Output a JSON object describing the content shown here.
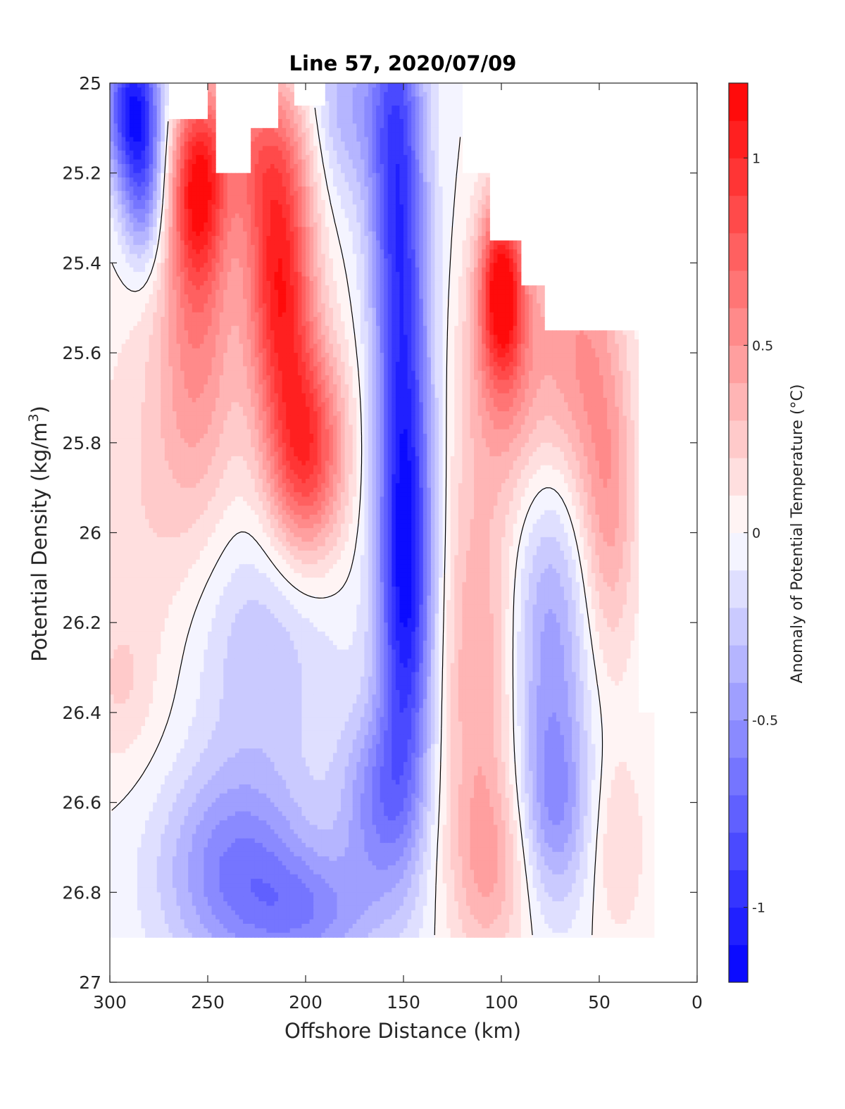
{
  "chart_data": {
    "type": "heatmap",
    "subtype": "filled-contour",
    "title": "Line 57, 2020/07/09",
    "xlabel": "Offshore Distance (km)",
    "ylabel_prefix": "Potential Density (kg/m",
    "ylabel_sup": "3",
    "ylabel_suffix": ")",
    "colorbar_label": "Anomaly of Potential Temperature (°C)",
    "xlim": [
      300,
      0
    ],
    "x_reversed": true,
    "ylim": [
      25,
      27
    ],
    "y_reversed": true,
    "xticks": [
      300,
      250,
      200,
      150,
      100,
      50,
      0
    ],
    "xtick_labels": [
      "300",
      "250",
      "200",
      "150",
      "100",
      "50",
      "0"
    ],
    "yticks": [
      25,
      25.2,
      25.4,
      25.6,
      25.8,
      26,
      26.2,
      26.4,
      26.6,
      26.8,
      27
    ],
    "ytick_labels": [
      "25",
      "25.2",
      "25.4",
      "25.6",
      "25.8",
      "26",
      "26.2",
      "26.4",
      "26.6",
      "26.8",
      "27"
    ],
    "clim": [
      -1.2,
      1.2
    ],
    "colorbar_ticks": [
      1,
      0.5,
      0,
      -0.5,
      -1
    ],
    "colorbar_tick_labels": [
      "1",
      "0.5",
      "0",
      "-0.5",
      "-1"
    ],
    "colorbar_levels": 24,
    "colormap": {
      "negative": "#0000ff",
      "zero": "#ffffff",
      "positive": "#ff0000"
    },
    "zero_contour_color": "#000000",
    "data_extent_density_max": 26.9,
    "features": [
      {
        "x": 288,
        "y": 25.05,
        "value": -1.05,
        "sx": 10,
        "sy": 0.12
      },
      {
        "x": 283,
        "y": 25.25,
        "value": -0.55,
        "sx": 8,
        "sy": 0.12
      },
      {
        "x": 255,
        "y": 25.22,
        "value": 0.95,
        "sx": 10,
        "sy": 0.16
      },
      {
        "x": 255,
        "y": 25.55,
        "value": 0.45,
        "sx": 14,
        "sy": 0.25
      },
      {
        "x": 213,
        "y": 25.45,
        "value": 1.0,
        "sx": 12,
        "sy": 0.2
      },
      {
        "x": 200,
        "y": 25.82,
        "value": 0.95,
        "sx": 14,
        "sy": 0.17
      },
      {
        "x": 222,
        "y": 25.15,
        "value": 0.55,
        "sx": 16,
        "sy": 0.14
      },
      {
        "x": 275,
        "y": 25.95,
        "value": 0.2,
        "sx": 28,
        "sy": 0.35
      },
      {
        "x": 155,
        "y": 25.1,
        "value": -0.65,
        "sx": 10,
        "sy": 0.3
      },
      {
        "x": 150,
        "y": 25.75,
        "value": -0.85,
        "sx": 10,
        "sy": 0.45
      },
      {
        "x": 148,
        "y": 26.2,
        "value": -0.6,
        "sx": 10,
        "sy": 0.3
      },
      {
        "x": 180,
        "y": 25.05,
        "value": -0.35,
        "sx": 12,
        "sy": 0.15
      },
      {
        "x": 225,
        "y": 26.25,
        "value": -0.3,
        "sx": 28,
        "sy": 0.2
      },
      {
        "x": 235,
        "y": 26.75,
        "value": -0.6,
        "sx": 28,
        "sy": 0.17
      },
      {
        "x": 195,
        "y": 26.85,
        "value": -0.4,
        "sx": 24,
        "sy": 0.1
      },
      {
        "x": 163,
        "y": 26.6,
        "value": -0.5,
        "sx": 14,
        "sy": 0.15
      },
      {
        "x": 100,
        "y": 25.45,
        "value": 1.05,
        "sx": 8,
        "sy": 0.14
      },
      {
        "x": 95,
        "y": 25.65,
        "value": 0.45,
        "sx": 16,
        "sy": 0.2
      },
      {
        "x": 60,
        "y": 25.6,
        "value": 0.45,
        "sx": 14,
        "sy": 0.25
      },
      {
        "x": 45,
        "y": 25.95,
        "value": 0.4,
        "sx": 10,
        "sy": 0.25
      },
      {
        "x": 75,
        "y": 26.25,
        "value": -0.45,
        "sx": 14,
        "sy": 0.3
      },
      {
        "x": 72,
        "y": 26.62,
        "value": -0.35,
        "sx": 12,
        "sy": 0.15
      },
      {
        "x": 112,
        "y": 26.3,
        "value": 0.4,
        "sx": 14,
        "sy": 0.35
      },
      {
        "x": 105,
        "y": 26.75,
        "value": 0.3,
        "sx": 14,
        "sy": 0.15
      },
      {
        "x": 40,
        "y": 26.7,
        "value": 0.2,
        "sx": 10,
        "sy": 0.15
      },
      {
        "x": 295,
        "y": 26.35,
        "value": 0.15,
        "sx": 12,
        "sy": 0.12
      }
    ],
    "blank_regions": [
      {
        "x_from": 300,
        "x_to": 0,
        "y_from": 26.9,
        "y_to": 27
      },
      {
        "x_from": 270,
        "x_to": 250,
        "y_from": 25,
        "y_to": 25.08
      },
      {
        "x_from": 245,
        "x_to": 228,
        "y_from": 25,
        "y_to": 25.2
      },
      {
        "x_from": 228,
        "x_to": 215,
        "y_from": 25,
        "y_to": 25.1
      },
      {
        "x_from": 205,
        "x_to": 190,
        "y_from": 25,
        "y_to": 25.05
      },
      {
        "x_from": 120,
        "x_to": 0,
        "y_from": 25,
        "y_to": 25.2
      },
      {
        "x_from": 105,
        "x_to": 0,
        "y_from": 25.2,
        "y_to": 25.35
      },
      {
        "x_from": 90,
        "x_to": 0,
        "y_from": 25.35,
        "y_to": 25.45
      },
      {
        "x_from": 78,
        "x_to": 0,
        "y_from": 25.45,
        "y_to": 25.55
      },
      {
        "x_from": 30,
        "x_to": 0,
        "y_from": 25.55,
        "y_to": 26.4
      },
      {
        "x_from": 22,
        "x_to": 0,
        "y_from": 26.4,
        "y_to": 26.9
      }
    ]
  }
}
